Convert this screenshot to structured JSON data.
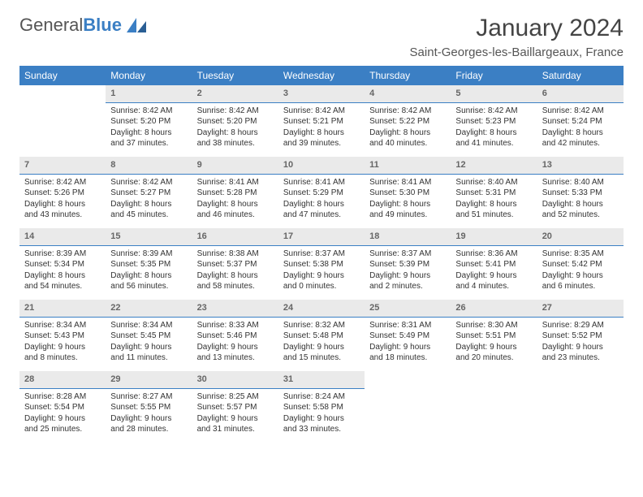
{
  "logo": {
    "text_a": "General",
    "text_b": "Blue"
  },
  "title": "January 2024",
  "location": "Saint-Georges-les-Baillargeaux, France",
  "colors": {
    "header_bg": "#3b7fc4",
    "header_text": "#ffffff",
    "daynum_bg": "#eaeaea",
    "daynum_text": "#666666",
    "divider": "#3b7fc4",
    "body_text": "#333333",
    "page_bg": "#ffffff"
  },
  "typography": {
    "month_title_fontsize": 30,
    "location_fontsize": 15,
    "weekday_fontsize": 12,
    "daynum_fontsize": 11,
    "cell_fontsize": 10
  },
  "weekdays": [
    "Sunday",
    "Monday",
    "Tuesday",
    "Wednesday",
    "Thursday",
    "Friday",
    "Saturday"
  ],
  "weeks": [
    [
      {
        "empty": true
      },
      {
        "n": "1",
        "sunrise": "8:42 AM",
        "sunset": "5:20 PM",
        "daylight": "8 hours and 37 minutes."
      },
      {
        "n": "2",
        "sunrise": "8:42 AM",
        "sunset": "5:20 PM",
        "daylight": "8 hours and 38 minutes."
      },
      {
        "n": "3",
        "sunrise": "8:42 AM",
        "sunset": "5:21 PM",
        "daylight": "8 hours and 39 minutes."
      },
      {
        "n": "4",
        "sunrise": "8:42 AM",
        "sunset": "5:22 PM",
        "daylight": "8 hours and 40 minutes."
      },
      {
        "n": "5",
        "sunrise": "8:42 AM",
        "sunset": "5:23 PM",
        "daylight": "8 hours and 41 minutes."
      },
      {
        "n": "6",
        "sunrise": "8:42 AM",
        "sunset": "5:24 PM",
        "daylight": "8 hours and 42 minutes."
      }
    ],
    [
      {
        "n": "7",
        "sunrise": "8:42 AM",
        "sunset": "5:26 PM",
        "daylight": "8 hours and 43 minutes."
      },
      {
        "n": "8",
        "sunrise": "8:42 AM",
        "sunset": "5:27 PM",
        "daylight": "8 hours and 45 minutes."
      },
      {
        "n": "9",
        "sunrise": "8:41 AM",
        "sunset": "5:28 PM",
        "daylight": "8 hours and 46 minutes."
      },
      {
        "n": "10",
        "sunrise": "8:41 AM",
        "sunset": "5:29 PM",
        "daylight": "8 hours and 47 minutes."
      },
      {
        "n": "11",
        "sunrise": "8:41 AM",
        "sunset": "5:30 PM",
        "daylight": "8 hours and 49 minutes."
      },
      {
        "n": "12",
        "sunrise": "8:40 AM",
        "sunset": "5:31 PM",
        "daylight": "8 hours and 51 minutes."
      },
      {
        "n": "13",
        "sunrise": "8:40 AM",
        "sunset": "5:33 PM",
        "daylight": "8 hours and 52 minutes."
      }
    ],
    [
      {
        "n": "14",
        "sunrise": "8:39 AM",
        "sunset": "5:34 PM",
        "daylight": "8 hours and 54 minutes."
      },
      {
        "n": "15",
        "sunrise": "8:39 AM",
        "sunset": "5:35 PM",
        "daylight": "8 hours and 56 minutes."
      },
      {
        "n": "16",
        "sunrise": "8:38 AM",
        "sunset": "5:37 PM",
        "daylight": "8 hours and 58 minutes."
      },
      {
        "n": "17",
        "sunrise": "8:37 AM",
        "sunset": "5:38 PM",
        "daylight": "9 hours and 0 minutes."
      },
      {
        "n": "18",
        "sunrise": "8:37 AM",
        "sunset": "5:39 PM",
        "daylight": "9 hours and 2 minutes."
      },
      {
        "n": "19",
        "sunrise": "8:36 AM",
        "sunset": "5:41 PM",
        "daylight": "9 hours and 4 minutes."
      },
      {
        "n": "20",
        "sunrise": "8:35 AM",
        "sunset": "5:42 PM",
        "daylight": "9 hours and 6 minutes."
      }
    ],
    [
      {
        "n": "21",
        "sunrise": "8:34 AM",
        "sunset": "5:43 PM",
        "daylight": "9 hours and 8 minutes."
      },
      {
        "n": "22",
        "sunrise": "8:34 AM",
        "sunset": "5:45 PM",
        "daylight": "9 hours and 11 minutes."
      },
      {
        "n": "23",
        "sunrise": "8:33 AM",
        "sunset": "5:46 PM",
        "daylight": "9 hours and 13 minutes."
      },
      {
        "n": "24",
        "sunrise": "8:32 AM",
        "sunset": "5:48 PM",
        "daylight": "9 hours and 15 minutes."
      },
      {
        "n": "25",
        "sunrise": "8:31 AM",
        "sunset": "5:49 PM",
        "daylight": "9 hours and 18 minutes."
      },
      {
        "n": "26",
        "sunrise": "8:30 AM",
        "sunset": "5:51 PM",
        "daylight": "9 hours and 20 minutes."
      },
      {
        "n": "27",
        "sunrise": "8:29 AM",
        "sunset": "5:52 PM",
        "daylight": "9 hours and 23 minutes."
      }
    ],
    [
      {
        "n": "28",
        "sunrise": "8:28 AM",
        "sunset": "5:54 PM",
        "daylight": "9 hours and 25 minutes."
      },
      {
        "n": "29",
        "sunrise": "8:27 AM",
        "sunset": "5:55 PM",
        "daylight": "9 hours and 28 minutes."
      },
      {
        "n": "30",
        "sunrise": "8:25 AM",
        "sunset": "5:57 PM",
        "daylight": "9 hours and 31 minutes."
      },
      {
        "n": "31",
        "sunrise": "8:24 AM",
        "sunset": "5:58 PM",
        "daylight": "9 hours and 33 minutes."
      },
      {
        "empty": true
      },
      {
        "empty": true
      },
      {
        "empty": true
      }
    ]
  ],
  "labels": {
    "sunrise": "Sunrise:",
    "sunset": "Sunset:",
    "daylight": "Daylight:"
  }
}
